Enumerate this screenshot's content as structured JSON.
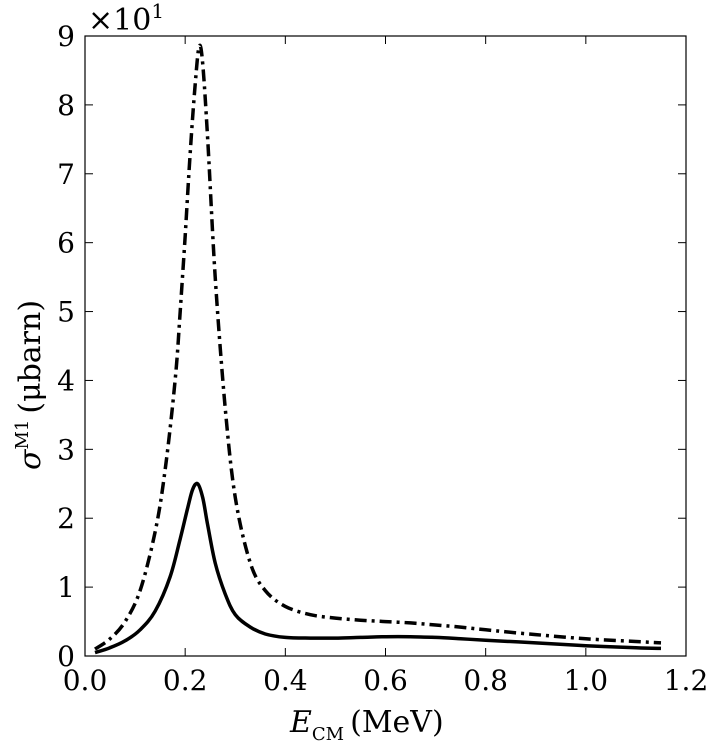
{
  "chart_data": {
    "type": "line",
    "xlabel": {
      "main": "E",
      "sub": "CM",
      "unit": "(MeV)"
    },
    "ylabel": {
      "main": "σ",
      "sup": "M1",
      "unit": "(μbarn)"
    },
    "multiplier": {
      "base": "×10",
      "exp": "1"
    },
    "xlim": [
      0.0,
      1.2
    ],
    "ylim": [
      0,
      9
    ],
    "xticks": [
      0.0,
      0.2,
      0.4,
      0.6,
      0.8,
      1.0,
      1.2
    ],
    "xtick_labels": [
      "0.0",
      "0.2",
      "0.4",
      "0.6",
      "0.8",
      "1.0",
      "1.2"
    ],
    "yticks": [
      0,
      1,
      2,
      3,
      4,
      5,
      6,
      7,
      8,
      9
    ],
    "ytick_labels": [
      "0",
      "1",
      "2",
      "3",
      "4",
      "5",
      "6",
      "7",
      "8",
      "9"
    ],
    "grid": false,
    "series": [
      {
        "style": "solid",
        "color": "#000000",
        "x": [
          0.02,
          0.05,
          0.08,
          0.11,
          0.14,
          0.17,
          0.19,
          0.205,
          0.215,
          0.225,
          0.235,
          0.245,
          0.26,
          0.28,
          0.3,
          0.33,
          0.36,
          0.4,
          0.45,
          0.5,
          0.55,
          0.6,
          0.65,
          0.7,
          0.75,
          0.8,
          0.9,
          1.0,
          1.1,
          1.15
        ],
        "y": [
          0.05,
          0.12,
          0.22,
          0.38,
          0.65,
          1.15,
          1.7,
          2.15,
          2.42,
          2.5,
          2.3,
          1.9,
          1.35,
          0.9,
          0.6,
          0.42,
          0.32,
          0.27,
          0.26,
          0.26,
          0.27,
          0.28,
          0.28,
          0.27,
          0.25,
          0.23,
          0.19,
          0.15,
          0.12,
          0.11
        ]
      },
      {
        "style": "dashdot",
        "color": "#000000",
        "x": [
          0.02,
          0.05,
          0.08,
          0.11,
          0.14,
          0.16,
          0.18,
          0.19,
          0.2,
          0.21,
          0.22,
          0.228,
          0.235,
          0.245,
          0.26,
          0.28,
          0.3,
          0.33,
          0.36,
          0.4,
          0.45,
          0.5,
          0.55,
          0.6,
          0.65,
          0.7,
          0.75,
          0.8,
          0.9,
          1.0,
          1.1,
          1.15
        ],
        "y": [
          0.1,
          0.25,
          0.5,
          0.95,
          1.8,
          2.7,
          4.0,
          5.0,
          6.1,
          7.3,
          8.3,
          8.85,
          8.6,
          7.5,
          5.5,
          3.6,
          2.3,
          1.35,
          0.95,
          0.72,
          0.6,
          0.55,
          0.52,
          0.5,
          0.48,
          0.45,
          0.42,
          0.38,
          0.31,
          0.25,
          0.21,
          0.19
        ]
      }
    ]
  }
}
